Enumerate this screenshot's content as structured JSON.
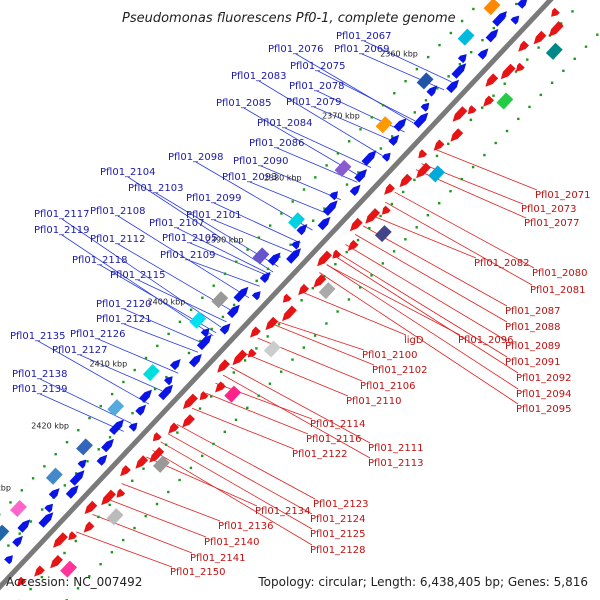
{
  "title": "Pseudomonas fluorescens Pf0-1, complete genome",
  "footer": {
    "accession": "Accession: NC_007492",
    "summary": "Topology: circular; Length: 6,438,405 bp; Genes: 5,816"
  },
  "colors": {
    "backbone": "#7a7a7a",
    "forward": "#0a14e6",
    "reverse": "#e61414",
    "blue_label": "#1a1aa8",
    "red_label": "#c01010",
    "blue_leader": "#2a3de0",
    "red_leader": "#e02020",
    "tick": "#1a9a1a"
  },
  "ruler": [
    "2350 kbp",
    "2360 kbp",
    "2370 kbp",
    "2380 kbp",
    "2390 kbp",
    "2400 kbp",
    "2410 kbp",
    "2420 kbp",
    "2430 kbp"
  ],
  "blue_labels": [
    "Pfl01_2067",
    "Pfl01_2076",
    "Pfl01_2069",
    "Pfl01_2075",
    "Pfl01_2083",
    "Pfl01_2078",
    "Pfl01_2085",
    "Pfl01_2079",
    "Pfl01_2084",
    "Pfl01_2086",
    "Pfl01_2098",
    "Pfl01_2090",
    "Pfl01_2093",
    "Pfl01_2104",
    "Pfl01_2103",
    "Pfl01_2099",
    "Pfl01_2101",
    "Pfl01_2117",
    "Pfl01_2108",
    "Pfl01_2107",
    "Pfl01_2119",
    "Pfl01_2112",
    "Pfl01_2105",
    "Pfl01_2118",
    "Pfl01_2109",
    "Pfl01_2115",
    "Pfl01_2120",
    "Pfl01_2121",
    "Pfl01_2135",
    "Pfl01_2126",
    "Pfl01_2127",
    "Pfl01_2138",
    "Pfl01_2139"
  ],
  "red_labels": [
    "Pfl01_2071",
    "Pfl01_2073",
    "Pfl01_2077",
    "Pfl01_2082",
    "Pfl01_2080",
    "Pfl01_2081",
    "Pfl01_2087",
    "Pfl01_2088",
    "Pfl01_2089",
    "ligD",
    "Pfl01_2096",
    "Pfl01_2091",
    "Pfl01_2100",
    "Pfl01_2092",
    "Pfl01_2102",
    "Pfl01_2094",
    "Pfl01_2106",
    "Pfl01_2095",
    "Pfl01_2110",
    "Pfl01_2114",
    "Pfl01_2116",
    "Pfl01_2111",
    "Pfl01_2122",
    "Pfl01_2113",
    "Pfl01_2123",
    "Pfl01_2134",
    "Pfl01_2124",
    "Pfl01_2136",
    "Pfl01_2125",
    "Pfl01_2140",
    "Pfl01_2128",
    "Pfl01_2141",
    "Pfl01_2150"
  ]
}
